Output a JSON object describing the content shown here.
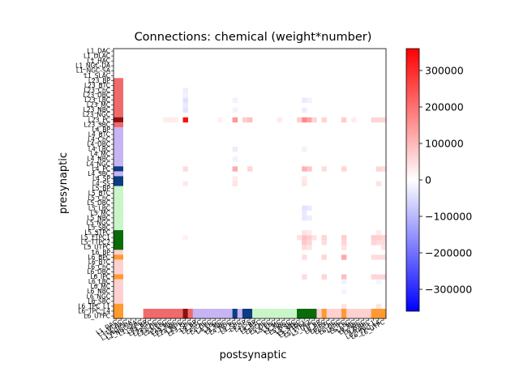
{
  "chart_data": {
    "type": "heatmap",
    "title": "Connections: chemical (weight*number)",
    "xlabel": "postsynaptic",
    "ylabel": "presynaptic",
    "colorbar": {
      "vmin": -360000,
      "vmax": 360000,
      "colormap": "bwr",
      "tick_values": [
        -300000,
        -200000,
        -100000,
        0,
        100000,
        200000,
        300000
      ],
      "tick_labels": [
        "−300000",
        "−200000",
        "−100000",
        "0",
        "100000",
        "200000",
        "300000"
      ]
    },
    "populations": [
      {
        "name": "L1_DAC",
        "group": "L1"
      },
      {
        "name": "L1_DLAC",
        "group": "L1"
      },
      {
        "name": "L1_HAC",
        "group": "L1"
      },
      {
        "name": "L1_NGC-DA",
        "group": "L1"
      },
      {
        "name": "L1_NGC-SA",
        "group": "L1"
      },
      {
        "name": "L1_SLAC",
        "group": "L1"
      },
      {
        "name": "L23_BP",
        "group": "L23"
      },
      {
        "name": "L23_BTC",
        "group": "L23"
      },
      {
        "name": "L23_ChC",
        "group": "L23"
      },
      {
        "name": "L23_DBC",
        "group": "L23"
      },
      {
        "name": "L23_LBC",
        "group": "L23"
      },
      {
        "name": "L23_MC",
        "group": "L23"
      },
      {
        "name": "L23_NBC",
        "group": "L23"
      },
      {
        "name": "L23_NGC",
        "group": "L23"
      },
      {
        "name": "L23_PC",
        "group": "L23_PC"
      },
      {
        "name": "L23_SBC",
        "group": "L23"
      },
      {
        "name": "L4_BP",
        "group": "L4"
      },
      {
        "name": "L4_BTC",
        "group": "L4"
      },
      {
        "name": "L4_ChC",
        "group": "L4"
      },
      {
        "name": "L4_DBC",
        "group": "L4"
      },
      {
        "name": "L4_LBC",
        "group": "L4"
      },
      {
        "name": "L4_MC",
        "group": "L4"
      },
      {
        "name": "L4_NBC",
        "group": "L4"
      },
      {
        "name": "L4_NGC",
        "group": "L4"
      },
      {
        "name": "L4_PC",
        "group": "L4_PC"
      },
      {
        "name": "L4_SBC",
        "group": "L4"
      },
      {
        "name": "L4_SP",
        "group": "L4_PC"
      },
      {
        "name": "L4_SS",
        "group": "L4_PC"
      },
      {
        "name": "L5_BP",
        "group": "L5"
      },
      {
        "name": "L5_BTC",
        "group": "L5"
      },
      {
        "name": "L5_ChC",
        "group": "L5"
      },
      {
        "name": "L5_DBC",
        "group": "L5"
      },
      {
        "name": "L5_LBC",
        "group": "L5"
      },
      {
        "name": "L5_MC",
        "group": "L5"
      },
      {
        "name": "L5_NBC",
        "group": "L5"
      },
      {
        "name": "L5_NGC",
        "group": "L5"
      },
      {
        "name": "L5_SBC",
        "group": "L5"
      },
      {
        "name": "L5_STPC",
        "group": "L5_PC"
      },
      {
        "name": "L5_TTPC1",
        "group": "L5_PC"
      },
      {
        "name": "L5_TTPC2",
        "group": "L5_PC"
      },
      {
        "name": "L5_UTPC",
        "group": "L5_PC"
      },
      {
        "name": "L6_BP",
        "group": "L6"
      },
      {
        "name": "L6_BPC",
        "group": "L6_PC"
      },
      {
        "name": "L6_BTC",
        "group": "L6"
      },
      {
        "name": "L6_ChC",
        "group": "L6"
      },
      {
        "name": "L6_DBC",
        "group": "L6"
      },
      {
        "name": "L6_IPC",
        "group": "L6_PC"
      },
      {
        "name": "L6_LBC",
        "group": "L6"
      },
      {
        "name": "L6_MC",
        "group": "L6"
      },
      {
        "name": "L6_NBC",
        "group": "L6"
      },
      {
        "name": "L6_NGC",
        "group": "L6"
      },
      {
        "name": "L6_SBC",
        "group": "L6"
      },
      {
        "name": "L6_TPC_L1",
        "group": "L6_PC"
      },
      {
        "name": "L6_TPC_L4",
        "group": "L6_PC"
      },
      {
        "name": "L6_UTPC",
        "group": "L6_PC"
      }
    ],
    "group_colors": {
      "L1": "#ffffff",
      "L23": "#f06a6a",
      "L23_PC": "#8b1010",
      "L4": "#c6b5f2",
      "L4_PC": "#0b3d80",
      "L5": "#c9f5c9",
      "L5_PC": "#0b6b0b",
      "L6": "#ffd0d0",
      "L6_PC": "#ff9a30"
    },
    "weights": [
      {
        "pre": "L23_PC",
        "post": "L23_PC",
        "value": 340000
      },
      {
        "pre": "L23_PC",
        "post": "L4_PC",
        "value": 150000
      },
      {
        "pre": "L23_PC",
        "post": "L4_SS",
        "value": 90000
      },
      {
        "pre": "L23_PC",
        "post": "L4_SP",
        "value": 70000
      },
      {
        "pre": "L23_PC",
        "post": "L5_TTPC1",
        "value": 170000
      },
      {
        "pre": "L23_PC",
        "post": "L5_TTPC2",
        "value": 130000
      },
      {
        "pre": "L23_PC",
        "post": "L5_UTPC",
        "value": 60000
      },
      {
        "pre": "L23_PC",
        "post": "L5_STPC",
        "value": 70000
      },
      {
        "pre": "L23_PC",
        "post": "L6_IPC",
        "value": 70000
      },
      {
        "pre": "L23_PC",
        "post": "L6_TPC_L1",
        "value": 60000
      },
      {
        "pre": "L23_PC",
        "post": "L6_TPC_L4",
        "value": 60000
      },
      {
        "pre": "L23_PC",
        "post": "L6_UTPC",
        "value": 55000
      },
      {
        "pre": "L23_PC",
        "post": "L6_BPC",
        "value": 60000
      },
      {
        "pre": "L23_PC",
        "post": "L23_MC",
        "value": 30000
      },
      {
        "pre": "L23_PC",
        "post": "L23_LBC",
        "value": 25000
      },
      {
        "pre": "L23_PC",
        "post": "L23_NBC",
        "value": 25000
      },
      {
        "pre": "L23_PC",
        "post": "L5_MC",
        "value": 30000
      },
      {
        "pre": "L23_PC",
        "post": "L6_MC",
        "value": 25000
      },
      {
        "pre": "L23_PC",
        "post": "L4_MC",
        "value": 20000
      },
      {
        "pre": "L4_PC",
        "post": "L23_PC",
        "value": 50000
      },
      {
        "pre": "L4_PC",
        "post": "L4_PC",
        "value": 120000
      },
      {
        "pre": "L4_PC",
        "post": "L4_SS",
        "value": 60000
      },
      {
        "pre": "L4_PC",
        "post": "L5_TTPC1",
        "value": 110000
      },
      {
        "pre": "L4_PC",
        "post": "L5_TTPC2",
        "value": 80000
      },
      {
        "pre": "L4_PC",
        "post": "L6_IPC",
        "value": 60000
      },
      {
        "pre": "L4_PC",
        "post": "L6_TPC_L4",
        "value": 60000
      },
      {
        "pre": "L4_PC",
        "post": "L6_UTPC",
        "value": 50000
      },
      {
        "pre": "L4_PC",
        "post": "L6_BPC",
        "value": 50000
      },
      {
        "pre": "L4_SS",
        "post": "L23_PC",
        "value": 30000
      },
      {
        "pre": "L4_SS",
        "post": "L4_PC",
        "value": 40000
      },
      {
        "pre": "L4_SS",
        "post": "L5_TTPC1",
        "value": 40000
      },
      {
        "pre": "L4_SS",
        "post": "L6_TPC_L4",
        "value": 40000
      },
      {
        "pre": "L4_SP",
        "post": "L4_PC",
        "value": 30000
      },
      {
        "pre": "L4_SP",
        "post": "L5_TTPC1",
        "value": 30000
      },
      {
        "pre": "L5_TTPC1",
        "post": "L5_TTPC1",
        "value": 90000
      },
      {
        "pre": "L5_TTPC1",
        "post": "L5_TTPC2",
        "value": 70000
      },
      {
        "pre": "L5_TTPC1",
        "post": "L6_IPC",
        "value": 70000
      },
      {
        "pre": "L5_TTPC1",
        "post": "L6_TPC_L1",
        "value": 70000
      },
      {
        "pre": "L5_TTPC1",
        "post": "L6_TPC_L4",
        "value": 70000
      },
      {
        "pre": "L5_TTPC1",
        "post": "L6_UTPC",
        "value": 60000
      },
      {
        "pre": "L5_TTPC1",
        "post": "L6_BPC",
        "value": 60000
      },
      {
        "pre": "L5_TTPC1",
        "post": "L5_STPC",
        "value": 40000
      },
      {
        "pre": "L5_TTPC1",
        "post": "L5_UTPC",
        "value": 40000
      },
      {
        "pre": "L5_TTPC1",
        "post": "L23_PC",
        "value": 20000
      },
      {
        "pre": "L5_TTPC2",
        "post": "L5_TTPC1",
        "value": 80000
      },
      {
        "pre": "L5_TTPC2",
        "post": "L5_TTPC2",
        "value": 60000
      },
      {
        "pre": "L5_TTPC2",
        "post": "L6_IPC",
        "value": 60000
      },
      {
        "pre": "L5_TTPC2",
        "post": "L6_TPC_L1",
        "value": 60000
      },
      {
        "pre": "L5_TTPC2",
        "post": "L6_TPC_L4",
        "value": 50000
      },
      {
        "pre": "L5_TTPC2",
        "post": "L6_UTPC",
        "value": 50000
      },
      {
        "pre": "L5_TTPC2",
        "post": "L6_BPC",
        "value": 50000
      },
      {
        "pre": "L5_STPC",
        "post": "L5_TTPC1",
        "value": 40000
      },
      {
        "pre": "L5_STPC",
        "post": "L5_TTPC2",
        "value": 30000
      },
      {
        "pre": "L5_STPC",
        "post": "L6_TPC_L4",
        "value": 30000
      },
      {
        "pre": "L5_UTPC",
        "post": "L5_TTPC1",
        "value": 50000
      },
      {
        "pre": "L5_UTPC",
        "post": "L5_TTPC2",
        "value": 40000
      },
      {
        "pre": "L5_UTPC",
        "post": "L6_IPC",
        "value": 40000
      },
      {
        "pre": "L5_UTPC",
        "post": "L6_UTPC",
        "value": 40000
      },
      {
        "pre": "L6_BPC",
        "post": "L5_TTPC1",
        "value": 50000
      },
      {
        "pre": "L6_BPC",
        "post": "L6_IPC",
        "value": 120000
      },
      {
        "pre": "L6_BPC",
        "post": "L6_BPC",
        "value": 60000
      },
      {
        "pre": "L6_BPC",
        "post": "L6_TPC_L1",
        "value": 50000
      },
      {
        "pre": "L6_BPC",
        "post": "L6_TPC_L4",
        "value": 50000
      },
      {
        "pre": "L6_BPC",
        "post": "L6_UTPC",
        "value": 50000
      },
      {
        "pre": "L6_IPC",
        "post": "L5_TTPC1",
        "value": 50000
      },
      {
        "pre": "L6_IPC",
        "post": "L6_IPC",
        "value": 90000
      },
      {
        "pre": "L6_IPC",
        "post": "L6_BPC",
        "value": 60000
      },
      {
        "pre": "L6_IPC",
        "post": "L6_TPC_L1",
        "value": 60000
      },
      {
        "pre": "L6_IPC",
        "post": "L6_TPC_L4",
        "value": 60000
      },
      {
        "pre": "L6_IPC",
        "post": "L6_UTPC",
        "value": 60000
      },
      {
        "pre": "L6_TPC_L1",
        "post": "L6_IPC",
        "value": 40000
      },
      {
        "pre": "L6_TPC_L1",
        "post": "L6_TPC_L4",
        "value": 40000
      },
      {
        "pre": "L6_TPC_L4",
        "post": "L6_IPC",
        "value": 40000
      },
      {
        "pre": "L6_TPC_L4",
        "post": "L6_TPC_L1",
        "value": 40000
      },
      {
        "pre": "L6_TPC_L4",
        "post": "L6_UTPC",
        "value": 40000
      },
      {
        "pre": "L6_UTPC",
        "post": "L6_IPC",
        "value": 40000
      },
      {
        "pre": "L6_UTPC",
        "post": "L6_UTPC",
        "value": 40000
      },
      {
        "pre": "L23_LBC",
        "post": "L23_PC",
        "value": -45000
      },
      {
        "pre": "L23_NBC",
        "post": "L23_PC",
        "value": -40000
      },
      {
        "pre": "L23_MC",
        "post": "L23_PC",
        "value": -30000
      },
      {
        "pre": "L23_ChC",
        "post": "L23_PC",
        "value": -25000
      },
      {
        "pre": "L23_DBC",
        "post": "L23_PC",
        "value": -20000
      },
      {
        "pre": "L23_LBC",
        "post": "L4_PC",
        "value": -20000
      },
      {
        "pre": "L23_NBC",
        "post": "L4_PC",
        "value": -15000
      },
      {
        "pre": "L23_LBC",
        "post": "L5_TTPC1",
        "value": -30000
      },
      {
        "pre": "L23_NBC",
        "post": "L5_TTPC1",
        "value": -25000
      },
      {
        "pre": "L23_LBC",
        "post": "L5_TTPC2",
        "value": -20000
      },
      {
        "pre": "L4_LBC",
        "post": "L4_PC",
        "value": -25000
      },
      {
        "pre": "L4_NBC",
        "post": "L4_PC",
        "value": -20000
      },
      {
        "pre": "L4_LBC",
        "post": "L5_TTPC1",
        "value": -20000
      },
      {
        "pre": "L5_LBC",
        "post": "L5_TTPC1",
        "value": -40000
      },
      {
        "pre": "L5_NBC",
        "post": "L5_TTPC1",
        "value": -35000
      },
      {
        "pre": "L5_MC",
        "post": "L5_TTPC1",
        "value": -30000
      },
      {
        "pre": "L5_LBC",
        "post": "L5_TTPC2",
        "value": -30000
      },
      {
        "pre": "L5_NBC",
        "post": "L5_TTPC2",
        "value": -25000
      },
      {
        "pre": "L6_LBC",
        "post": "L6_IPC",
        "value": -20000
      },
      {
        "pre": "L6_NBC",
        "post": "L6_IPC",
        "value": -15000
      },
      {
        "pre": "L6_LBC",
        "post": "L6_TPC_L4",
        "value": -15000
      },
      {
        "pre": "L23_MC",
        "post": "L1_DAC",
        "value": 15000
      },
      {
        "pre": "L23_PC",
        "post": "L1_DAC",
        "value": 20000
      },
      {
        "pre": "L4_PC",
        "post": "L1_DAC",
        "value": 10000
      }
    ]
  }
}
